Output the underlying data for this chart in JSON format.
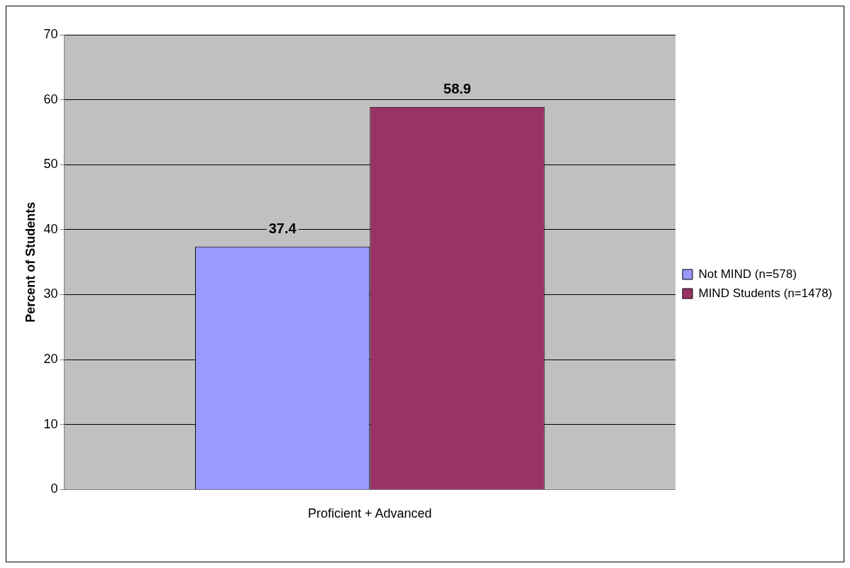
{
  "chart_data": {
    "type": "bar",
    "ylabel": "Percent of Students",
    "categories": [
      "Proficient + Advanced"
    ],
    "series": [
      {
        "name": "Not MIND (n=578)",
        "color": "#9999ff",
        "values": [
          37.4
        ]
      },
      {
        "name": "MIND Students (n=1478)",
        "color": "#993366",
        "values": [
          58.9
        ]
      }
    ],
    "ylim": [
      0,
      70
    ],
    "yticks": [
      0,
      10,
      20,
      30,
      40,
      50,
      60,
      70
    ],
    "grid": "y",
    "legend": "right",
    "data_labels": true
  }
}
